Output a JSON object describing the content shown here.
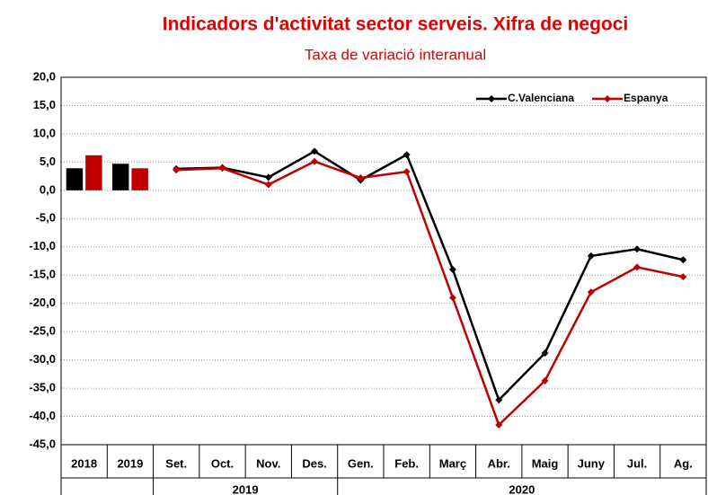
{
  "chart_data": {
    "type": "bar-line",
    "title": "Indicadors d'activitat sector serveis. Xifra de negoci",
    "subtitle": "Taxa de variació interanual",
    "bar_categories": [
      "2018",
      "2019"
    ],
    "line_categories": [
      "Set.",
      "Oct.",
      "Nov.",
      "Des.",
      "Gen.",
      "Feb.",
      "Març",
      "Abr.",
      "Maig",
      "Juny",
      "Jul.",
      "Ag."
    ],
    "groups": [
      {
        "label": "2019",
        "members": [
          "Set.",
          "Oct.",
          "Nov.",
          "Des."
        ]
      },
      {
        "label": "2020",
        "members": [
          "Gen.",
          "Feb.",
          "Març",
          "Abr.",
          "Maig",
          "Juny",
          "Jul.",
          "Ag."
        ]
      }
    ],
    "series": [
      {
        "name": "C.Valenciana",
        "color": "#000000",
        "bar_values": [
          3.9,
          4.7
        ],
        "line_values": [
          3.8,
          4.0,
          2.3,
          6.9,
          1.8,
          6.3,
          -14.0,
          -37.1,
          -28.8,
          -11.6,
          -10.4,
          -12.3
        ]
      },
      {
        "name": "Espanya",
        "color": "#c00000",
        "bar_values": [
          6.2,
          3.9
        ],
        "line_values": [
          3.6,
          3.9,
          1.0,
          5.1,
          2.2,
          3.3,
          -19.0,
          -41.5,
          -33.7,
          -18.0,
          -13.6,
          -15.3
        ]
      }
    ],
    "ylim": [
      -45,
      20
    ],
    "yticks": [
      {
        "value": 20,
        "label": "20,0"
      },
      {
        "value": 15,
        "label": "15,0"
      },
      {
        "value": 10,
        "label": "10,0"
      },
      {
        "value": 5,
        "label": "5,0"
      },
      {
        "value": 0,
        "label": "0,0"
      },
      {
        "value": -5,
        "label": "-5,0"
      },
      {
        "value": -10,
        "label": "-10,0"
      },
      {
        "value": -15,
        "label": "-15,0"
      },
      {
        "value": -20,
        "label": "-20,0"
      },
      {
        "value": -25,
        "label": "-25,0"
      },
      {
        "value": -30,
        "label": "-30,0"
      },
      {
        "value": -35,
        "label": "-35,0"
      },
      {
        "value": -40,
        "label": "-40,0"
      },
      {
        "value": -45,
        "label": "-45,0"
      }
    ],
    "grid": true,
    "legend": "top-right"
  }
}
